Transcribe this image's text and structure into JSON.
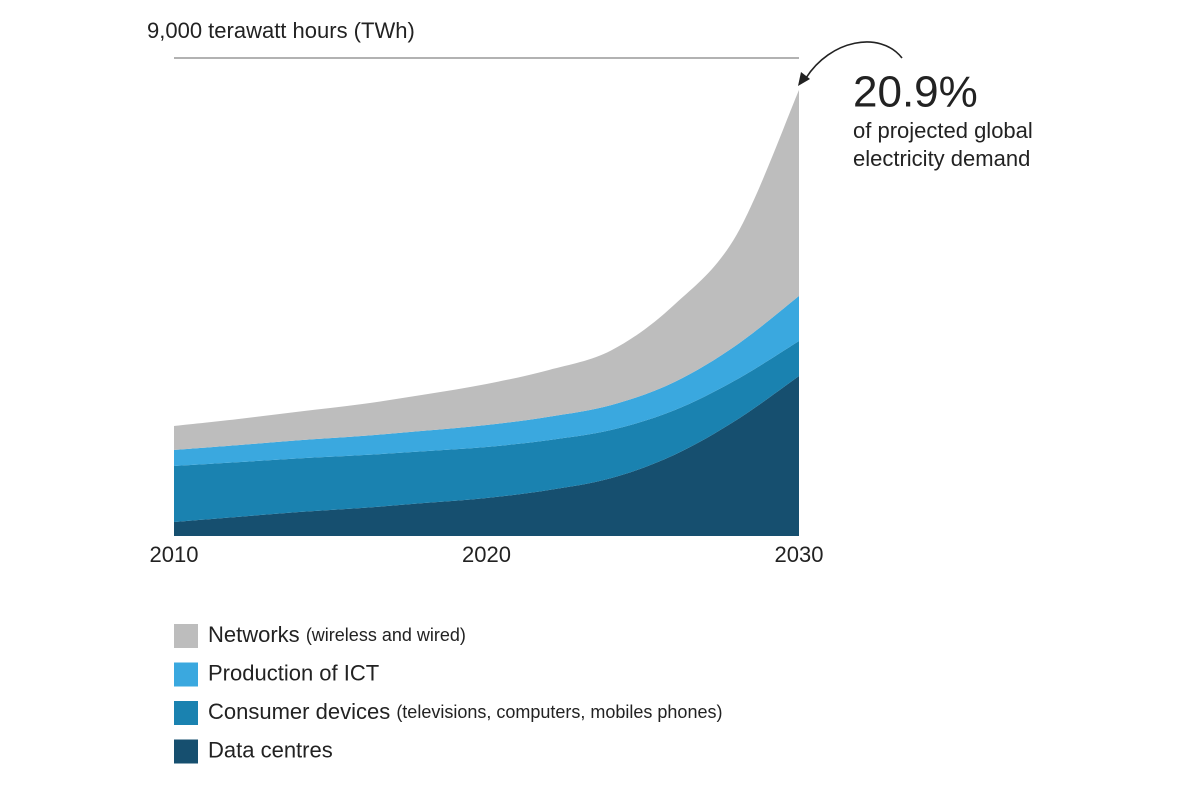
{
  "chart_data": {
    "type": "stacked_area",
    "x": [
      2010,
      2012,
      2014,
      2016,
      2018,
      2020,
      2022,
      2024,
      2026,
      2028,
      2030
    ],
    "xlim": [
      2010,
      2030
    ],
    "xticks": [
      2010,
      2020,
      2030
    ],
    "ylim": [
      0,
      9000
    ],
    "yticks": [
      {
        "value": 9000,
        "label": "9,000 terawatt hours (TWh)"
      }
    ],
    "grid": true,
    "series": [
      {
        "name": "Networks",
        "description": "(wireless and wired)",
        "color": "#bdbdbd",
        "values": [
          452,
          490,
          540,
          600,
          680,
          772,
          880,
          1030,
          1455,
          2074,
          3879
        ]
      },
      {
        "name": "Production of ICT",
        "color": "#3aa8df",
        "values": [
          301,
          320,
          340,
          360,
          385,
          414,
          440,
          470,
          530,
          650,
          847
        ]
      },
      {
        "name": "Consumer devices",
        "description": "(televisions, computers, mobiles phones)",
        "color": "#1a82b0",
        "values": [
          1054,
          1030,
          1010,
          995,
          975,
          960,
          940,
          905,
          840,
          760,
          659
        ]
      },
      {
        "name": "Data centres",
        "color": "#164f6f",
        "values": [
          264,
          358,
          452,
          527,
          621,
          716,
          866,
          1092,
          1525,
          2184,
          3013
        ]
      }
    ],
    "annotation": {
      "value": "20.9%",
      "lines": [
        "of projected global",
        "electricity demand"
      ]
    }
  }
}
